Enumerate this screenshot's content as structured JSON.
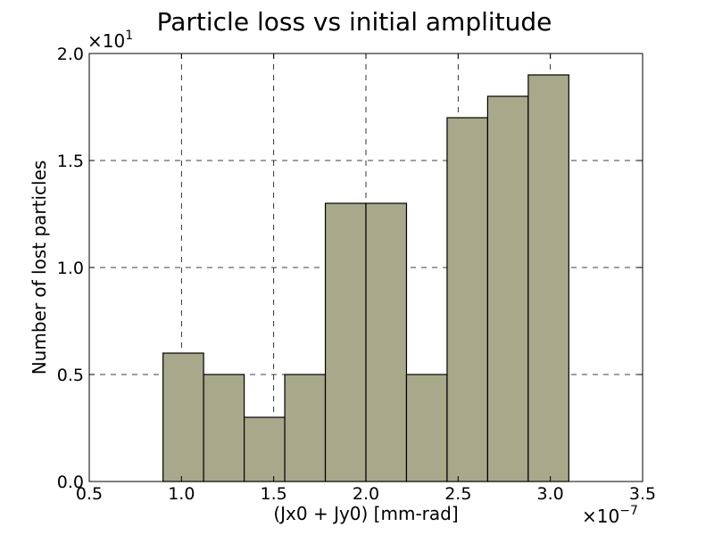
{
  "chart_data": {
    "type": "bar",
    "title": "Particle loss vs initial amplitude",
    "xlabel": "(Jx0 + Jy0) [mm-rad]",
    "ylabel": "Number of lost particles",
    "x_multiplier": "×10",
    "x_multiplier_exp": "−7",
    "y_multiplier": "×10",
    "y_multiplier_exp": "1",
    "xlim": [
      0.5,
      3.5
    ],
    "ylim": [
      0.0,
      2.0
    ],
    "xticks": [
      0.5,
      1.0,
      1.5,
      2.0,
      2.5,
      3.0,
      3.5
    ],
    "xtick_labels": [
      "0.5",
      "1.0",
      "1.5",
      "2.0",
      "2.5",
      "3.0",
      "3.5"
    ],
    "yticks": [
      0.0,
      0.5,
      1.0,
      1.5,
      2.0
    ],
    "ytick_labels": [
      "0.0",
      "0.5",
      "1.0",
      "1.5",
      "2.0"
    ],
    "bins": [
      {
        "x_start": 0.9,
        "x_end": 1.12,
        "value": 0.6
      },
      {
        "x_start": 1.12,
        "x_end": 1.34,
        "value": 0.5
      },
      {
        "x_start": 1.34,
        "x_end": 1.56,
        "value": 0.3
      },
      {
        "x_start": 1.56,
        "x_end": 1.78,
        "value": 0.5
      },
      {
        "x_start": 1.78,
        "x_end": 2.0,
        "value": 1.3
      },
      {
        "x_start": 2.0,
        "x_end": 2.22,
        "value": 1.3
      },
      {
        "x_start": 2.22,
        "x_end": 2.44,
        "value": 0.5
      },
      {
        "x_start": 2.44,
        "x_end": 2.66,
        "value": 1.7
      },
      {
        "x_start": 2.66,
        "x_end": 2.88,
        "value": 1.8
      },
      {
        "x_start": 2.88,
        "x_end": 3.1,
        "value": 1.9
      }
    ],
    "bar_color": "#a8a88a",
    "edge_color": "#000000",
    "grid": true,
    "legend": "none"
  }
}
